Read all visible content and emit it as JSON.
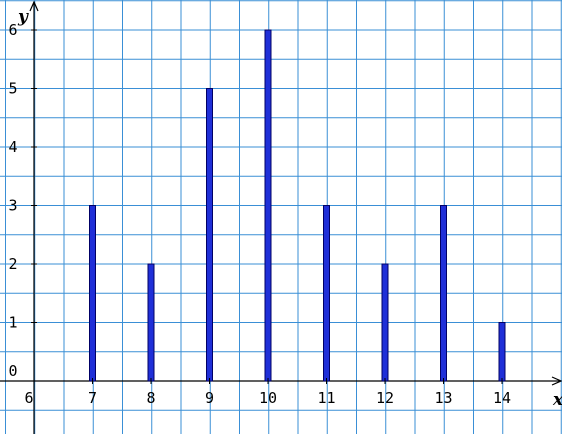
{
  "chart_data": {
    "type": "bar",
    "x": [
      7,
      8,
      9,
      10,
      11,
      12,
      13,
      14
    ],
    "values": [
      3,
      2,
      5,
      6,
      3,
      2,
      3,
      1
    ],
    "xlabel": "x",
    "ylabel": "y",
    "xlim": [
      6,
      15
    ],
    "ylim": [
      0,
      6
    ],
    "x_ticks": [
      "6",
      "7",
      "8",
      "9",
      "10",
      "11",
      "12",
      "13",
      "14"
    ],
    "y_ticks": [
      "0",
      "1",
      "2",
      "3",
      "4",
      "5",
      "6"
    ],
    "grid": true,
    "bar_color": "#1f2fd8",
    "grid_color": "#3a8fd6"
  }
}
